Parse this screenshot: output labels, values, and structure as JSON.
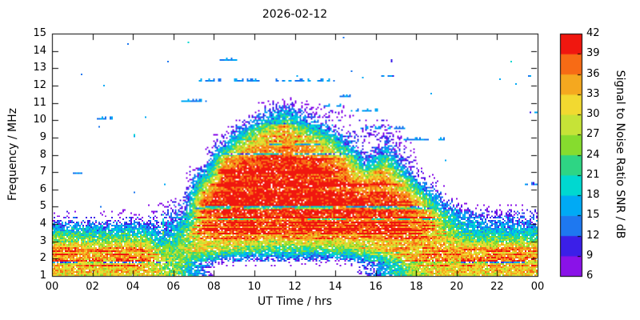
{
  "chart_data": {
    "type": "heatmap",
    "title": "2026-02-12",
    "xlabel": "UT Time / hrs",
    "ylabel": "Frequency / MHz",
    "colorbar_label": "Signal to Noise Ratio SNR / dB",
    "xlim": [
      0,
      24
    ],
    "ylim": [
      1,
      15
    ],
    "zlim": [
      6,
      42
    ],
    "grid": false,
    "legend_position": "right-colorbar",
    "x_tick_values": [
      0,
      2,
      4,
      6,
      8,
      10,
      12,
      14,
      16,
      18,
      20,
      22,
      24
    ],
    "x_tick_labels": [
      "00",
      "02",
      "04",
      "06",
      "08",
      "10",
      "12",
      "14",
      "16",
      "18",
      "20",
      "22",
      "00"
    ],
    "y_tick_values": [
      1,
      2,
      3,
      4,
      5,
      6,
      7,
      8,
      9,
      10,
      11,
      12,
      13,
      14,
      15
    ],
    "colorbar_tick_values": [
      6,
      9,
      12,
      15,
      18,
      21,
      24,
      27,
      30,
      33,
      36,
      39,
      42
    ],
    "palette": [
      "#8a12e8",
      "#3b1fe8",
      "#1e78f0",
      "#00aaf5",
      "#00d8d0",
      "#2ed584",
      "#86dc2e",
      "#c6e337",
      "#f2d930",
      "#f5a81f",
      "#f76b15",
      "#f0170f"
    ],
    "snr_units": "dB",
    "grid_col_hours": [
      0,
      1,
      2,
      3,
      4,
      5,
      6,
      7,
      8,
      9,
      10,
      11,
      12,
      13,
      14,
      15,
      16,
      17,
      18,
      19,
      20,
      21,
      22,
      23
    ],
    "grid_row_freq_mhz": [
      1,
      2,
      3,
      4,
      5,
      6,
      7,
      8,
      9,
      10,
      11,
      12,
      13,
      14
    ],
    "snr_grid": [
      [
        32,
        32,
        31,
        32,
        32,
        28,
        22,
        12,
        0,
        0,
        0,
        0,
        0,
        0,
        0,
        8,
        16,
        24,
        30,
        31,
        32,
        31,
        32,
        32
      ],
      [
        34,
        33,
        33,
        34,
        33,
        24,
        26,
        28,
        26,
        24,
        22,
        22,
        22,
        23,
        24,
        26,
        28,
        32,
        33,
        34,
        33,
        33,
        34,
        33
      ],
      [
        20,
        19,
        18,
        19,
        20,
        12,
        22,
        34,
        37,
        38,
        37,
        37,
        38,
        37,
        38,
        37,
        38,
        36,
        33,
        26,
        19,
        18,
        18,
        18
      ],
      [
        4,
        4,
        3,
        4,
        4,
        8,
        14,
        37,
        39,
        40,
        39,
        39,
        40,
        39,
        39,
        39,
        39,
        37,
        35,
        22,
        12,
        9,
        9,
        8
      ],
      [
        0,
        0,
        0,
        0,
        0,
        0,
        6,
        36,
        40,
        40,
        40,
        40,
        40,
        40,
        39,
        38,
        38,
        36,
        22,
        6,
        0,
        0,
        0,
        0
      ],
      [
        0,
        0,
        0,
        0,
        0,
        0,
        0,
        22,
        39,
        40,
        40,
        40,
        40,
        40,
        38,
        34,
        36,
        24,
        6,
        0,
        0,
        0,
        0,
        0
      ],
      [
        0,
        0,
        0,
        0,
        0,
        0,
        0,
        4,
        34,
        38,
        39,
        39,
        38,
        37,
        33,
        14,
        25,
        8,
        0,
        0,
        0,
        0,
        0,
        0
      ],
      [
        0,
        0,
        0,
        0,
        0,
        0,
        0,
        0,
        15,
        31,
        35,
        36,
        35,
        31,
        17,
        4,
        12,
        4,
        0,
        0,
        0,
        0,
        0,
        0
      ],
      [
        0,
        0,
        0,
        0,
        0,
        0,
        0,
        0,
        0,
        13,
        25,
        31,
        22,
        13,
        4,
        6,
        6,
        0,
        0,
        0,
        0,
        0,
        0,
        0
      ],
      [
        0,
        0,
        0,
        0,
        0,
        0,
        0,
        0,
        0,
        0,
        8,
        15,
        7,
        4,
        4,
        0,
        0,
        0,
        0,
        0,
        0,
        0,
        0,
        0
      ],
      [
        0,
        0,
        0,
        0,
        0,
        0,
        0,
        0,
        0,
        0,
        0,
        0,
        0,
        0,
        0,
        0,
        0,
        0,
        0,
        0,
        0,
        0,
        0,
        0
      ],
      [
        0,
        0,
        0,
        0,
        0,
        0,
        0,
        0,
        0,
        0,
        0,
        0,
        0,
        0,
        0,
        0,
        0,
        0,
        0,
        0,
        0,
        0,
        0,
        0
      ],
      [
        0,
        0,
        0,
        0,
        0,
        0,
        0,
        0,
        0,
        0,
        0,
        0,
        0,
        0,
        0,
        0,
        0,
        0,
        0,
        0,
        0,
        0,
        0,
        0
      ],
      [
        0,
        0,
        0,
        0,
        0,
        0,
        0,
        0,
        0,
        0,
        0,
        0,
        0,
        0,
        0,
        0,
        0,
        0,
        0,
        0,
        0,
        0,
        0,
        0
      ]
    ],
    "features": [
      {
        "f": 12.3,
        "t0": 7.3,
        "t1": 13.9,
        "snr": 15
      },
      {
        "f": 13.5,
        "t0": 8.3,
        "t1": 9.1,
        "snr": 15
      },
      {
        "f": 11.1,
        "t0": 6.4,
        "t1": 7.6,
        "snr": 15
      },
      {
        "f": 10.9,
        "t0": 13.3,
        "t1": 14.2,
        "snr": 15
      },
      {
        "f": 10.6,
        "t0": 14.8,
        "t1": 16.2,
        "snr": 15
      },
      {
        "f": 9.6,
        "t0": 15.2,
        "t1": 17.4,
        "snr": 15
      },
      {
        "f": 8.9,
        "t0": 17.2,
        "t1": 19.4,
        "snr": 15
      },
      {
        "f": 10.15,
        "t0": 2.1,
        "t1": 2.9,
        "snr": 14
      },
      {
        "f": 6.4,
        "t0": 0.1,
        "t1": 0.6,
        "snr": 14
      },
      {
        "f": 7.0,
        "t0": 1.0,
        "t1": 1.4,
        "snr": 13
      },
      {
        "f": 6.3,
        "t0": 23.4,
        "t1": 23.9,
        "snr": 14
      },
      {
        "f": 12.6,
        "t0": 16.3,
        "t1": 16.8,
        "snr": 14
      },
      {
        "f": 13.4,
        "t0": 16.4,
        "t1": 16.7,
        "snr": 13
      },
      {
        "f": 12.6,
        "t0": 23.5,
        "t1": 23.9,
        "snr": 14
      },
      {
        "f": 10.5,
        "t0": 23.6,
        "t1": 23.9,
        "snr": 13
      },
      {
        "f": 11.4,
        "t0": 14.2,
        "t1": 14.7,
        "snr": 13
      },
      {
        "type": "vline",
        "t": 5.45,
        "f0": 2.7,
        "f1": 4.6,
        "snr": 22
      }
    ]
  }
}
